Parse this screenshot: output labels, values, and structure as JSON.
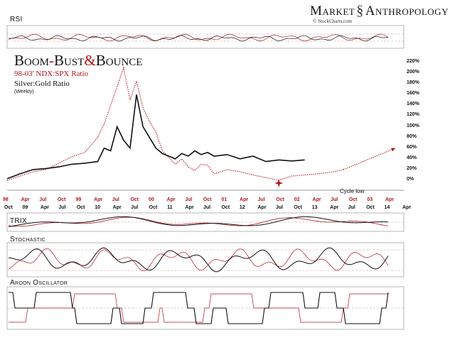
{
  "brand": {
    "name_left": "Market",
    "name_right": "Anthropology",
    "credit": "© StockCharts.com"
  },
  "panels": {
    "rsi": "RSI",
    "trix": "TRIX",
    "stochastic": "Stochastic",
    "aroon": "Aroon Oscillator"
  },
  "colors": {
    "red": "#b2131b",
    "black": "#111111",
    "grid": "#999999"
  },
  "chart_data": {
    "type": "line",
    "title_parts": [
      {
        "text": "Boom",
        "color": "black"
      },
      {
        "text": "-",
        "color": "red"
      },
      {
        "text": "Bust",
        "color": "black"
      },
      {
        "text": "&",
        "color": "red"
      },
      {
        "text": "Bounce",
        "color": "black"
      }
    ],
    "subtitle": "98-03' NDX:SPX Ratio",
    "subtitle2": "Silver:Gold Ratio",
    "note": "(Weekly)",
    "yticks": [
      "220%",
      "200%",
      "180%",
      "160%",
      "140%",
      "120%",
      "100%",
      "80%",
      "60%",
      "40%",
      "20%",
      "0%"
    ],
    "ylim": [
      0,
      220
    ],
    "x_axis_red": [
      "98",
      "Apr",
      "Jul",
      "Oct",
      "99",
      "Apr",
      "Jul",
      "Oct",
      "00",
      "Apr",
      "Jul",
      "Oct",
      "01",
      "Apr",
      "Jul",
      "Oct",
      "02",
      "Apr",
      "Jul",
      "Oct",
      "03",
      "Apr"
    ],
    "x_axis_black": [
      "Oct",
      "09",
      "Apr",
      "Jul",
      "Oct",
      "10",
      "Apr",
      "Jul",
      "Oct",
      "11",
      "Apr",
      "Jul",
      "Oct",
      "12",
      "Apr",
      "Jul",
      "Oct",
      "13",
      "Apr",
      "Jul",
      "Oct",
      "14",
      "Apr"
    ],
    "annotation": "Cycle low",
    "series": [
      {
        "name": "98-03' NDX:SPX Ratio",
        "color": "red",
        "style": "dotted",
        "t": [
          0,
          2,
          4,
          6,
          8,
          10,
          12,
          14,
          15,
          16,
          17,
          18,
          19,
          20,
          21,
          22,
          23,
          24,
          25,
          26,
          27,
          28,
          29,
          30,
          31,
          32,
          34,
          36,
          38,
          40,
          42,
          44,
          46,
          48,
          50,
          52
        ],
        "values": [
          0,
          8,
          16,
          20,
          32,
          44,
          52,
          80,
          105,
          140,
          175,
          210,
          150,
          185,
          135,
          110,
          90,
          55,
          42,
          30,
          40,
          25,
          18,
          30,
          28,
          12,
          20,
          16,
          10,
          5,
          0,
          8,
          10,
          12,
          15,
          20
        ]
      },
      {
        "name": "Silver:Gold Ratio",
        "color": "black",
        "style": "solid",
        "t": [
          0,
          2,
          4,
          6,
          8,
          10,
          12,
          14,
          15,
          16,
          17,
          18,
          19,
          20,
          21,
          22,
          23,
          24,
          25,
          26,
          27,
          28,
          29,
          30,
          31,
          32,
          34,
          36,
          38,
          40,
          42,
          44,
          46
        ],
        "values": [
          3,
          12,
          20,
          22,
          25,
          30,
          32,
          35,
          60,
          55,
          100,
          75,
          60,
          160,
          100,
          80,
          60,
          50,
          45,
          40,
          50,
          45,
          55,
          48,
          52,
          45,
          48,
          40,
          45,
          35,
          38,
          36,
          38
        ]
      },
      {
        "name": "projection",
        "color": "red",
        "style": "dotted-arrow",
        "t": [
          52,
          60
        ],
        "values": [
          20,
          60
        ]
      }
    ]
  }
}
